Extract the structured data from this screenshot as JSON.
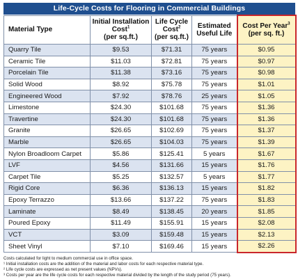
{
  "title": "Life-Cycle Costs for Flooring in Commercial Buildings",
  "headers": {
    "material": "Material Type",
    "installation": "Initial Installation Cost",
    "installation_sup": "1",
    "installation_unit": "(per sq.ft.)",
    "lifecycle": "Life Cycle Cost",
    "lifecycle_sup": "2",
    "lifecycle_unit": "(per sq.ft.)",
    "useful_life": "Estimated Useful Life",
    "cost_per_year": "Cost Per Year",
    "cost_per_year_sup": "3",
    "cost_per_year_unit": "(per sq. ft.)"
  },
  "rows": [
    {
      "material": "Quarry Tile",
      "installation": "$9.53",
      "lifecycle": "$71.31",
      "life": "75 years",
      "per_year": "$0.95"
    },
    {
      "material": "Ceramic Tile",
      "installation": "$11.03",
      "lifecycle": "$72.81",
      "life": "75 years",
      "per_year": "$0.97"
    },
    {
      "material": "Porcelain Tile",
      "installation": "$11.38",
      "lifecycle": "$73.16",
      "life": "75 years",
      "per_year": "$0.98"
    },
    {
      "material": "Solid Wood",
      "installation": "$8.92",
      "lifecycle": "$75.78",
      "life": "75 years",
      "per_year": "$1.01"
    },
    {
      "material": "Engineered Wood",
      "installation": "$7.92",
      "lifecycle": "$78.76",
      "life": "25 years",
      "per_year": "$1.05"
    },
    {
      "material": "Limestone",
      "installation": "$24.30",
      "lifecycle": "$101.68",
      "life": "75 years",
      "per_year": "$1.36"
    },
    {
      "material": "Travertine",
      "installation": "$24.30",
      "lifecycle": "$101.68",
      "life": "75 years",
      "per_year": "$1.36"
    },
    {
      "material": "Granite",
      "installation": "$26.65",
      "lifecycle": "$102.69",
      "life": "75 years",
      "per_year": "$1.37"
    },
    {
      "material": "Marble",
      "installation": "$26.65",
      "lifecycle": "$104.03",
      "life": "75 years",
      "per_year": "$1.39"
    },
    {
      "material": "Nylon Broadloom Carpet",
      "installation": "$5.86",
      "lifecycle": "$125.41",
      "life": "5 years",
      "per_year": "$1.67"
    },
    {
      "material": "LVF",
      "installation": "$4.56",
      "lifecycle": "$131.66",
      "life": "15 years",
      "per_year": "$1.76"
    },
    {
      "material": "Carpet Tile",
      "installation": "$5.25",
      "lifecycle": "$132.57",
      "life": "5 years",
      "per_year": "$1.77"
    },
    {
      "material": "Rigid Core",
      "installation": "$6.36",
      "lifecycle": "$136.13",
      "life": "15 years",
      "per_year": "$1.82"
    },
    {
      "material": "Epoxy Terrazzo",
      "installation": "$13.66",
      "lifecycle": "$137.22",
      "life": "75 years",
      "per_year": "$1.83"
    },
    {
      "material": "Laminate",
      "installation": "$8.49",
      "lifecycle": "$138.45",
      "life": "20 years",
      "per_year": "$1.85"
    },
    {
      "material": "Poured Epoxy",
      "installation": "$11.49",
      "lifecycle": "$155.91",
      "life": "15 years",
      "per_year": "$2.08"
    },
    {
      "material": "VCT",
      "installation": "$3.09",
      "lifecycle": "$159.48",
      "life": "15 years",
      "per_year": "$2.13"
    },
    {
      "material": "Sheet Vinyl",
      "installation": "$7.10",
      "lifecycle": "$169.46",
      "life": "15 years",
      "per_year": "$2.26"
    }
  ],
  "notes": [
    "Costs calculated for light to medium commercial use in office space.",
    "¹ Initial installation costs are the addition of the material and labor costs for each respective material type.",
    "² Life cycle costs are expressed as net present values (NPVs).",
    "³ Costs per year are the life cycle costs for each respective material divided by the length of the study period (75 years)."
  ],
  "colors": {
    "title_bar": "#1f4f8f",
    "stripe": "#dbe3f0",
    "highlight_fill": "#fdf3c4",
    "highlight_border": "#c9262b"
  }
}
